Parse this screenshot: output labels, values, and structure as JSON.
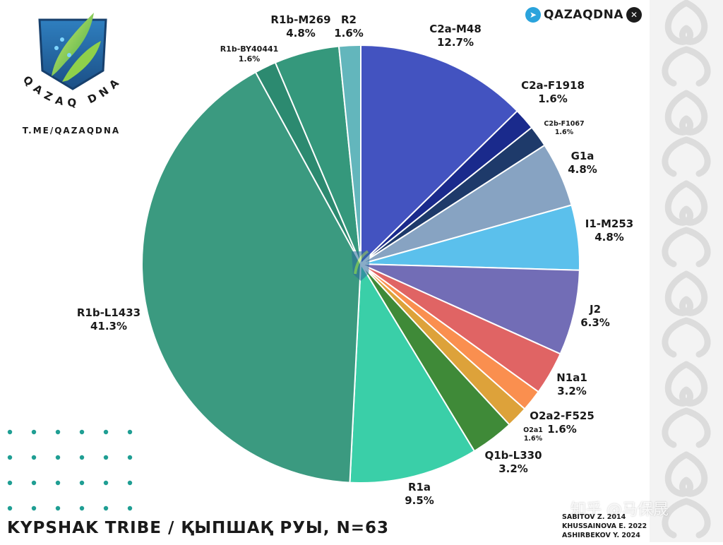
{
  "brand": {
    "logo_text": "QAZAQ DNA",
    "logo_url": "T.ME/QAZAQDNA",
    "channel_name": "QAZAQDNA",
    "icons": [
      "telegram-icon",
      "x-icon"
    ]
  },
  "chart_data": {
    "type": "pie",
    "title": "KYPSHAK TRIBE / ҚЫПШАҚ РУЫ, N=63",
    "start": "12 o'clock",
    "direction": "clockwise",
    "slices": [
      {
        "name": "C2a-M48",
        "value": 12.7,
        "label": "12.7%",
        "color": "#4353c0"
      },
      {
        "name": "C2a-F1918",
        "value": 1.6,
        "label": "1.6%",
        "color": "#1a2a8c"
      },
      {
        "name": "C2b-F1067",
        "value": 1.6,
        "label": "1.6%",
        "color": "#1e3a6a"
      },
      {
        "name": "G1a",
        "value": 4.8,
        "label": "4.8%",
        "color": "#87a3c2"
      },
      {
        "name": "I1-M253",
        "value": 4.8,
        "label": "4.8%",
        "color": "#5bc0ec"
      },
      {
        "name": "J2",
        "value": 6.3,
        "label": "6.3%",
        "color": "#726db6"
      },
      {
        "name": "N1a1",
        "value": 3.2,
        "label": "3.2%",
        "color": "#e06464"
      },
      {
        "name": "O2a2-F525",
        "value": 1.6,
        "label": "1.6%",
        "color": "#fa8f4f"
      },
      {
        "name": "O2a1",
        "value": 1.6,
        "label": "1.6%",
        "color": "#dda23a"
      },
      {
        "name": "Q1b-L330",
        "value": 3.2,
        "label": "3.2%",
        "color": "#3f8a38"
      },
      {
        "name": "R1a",
        "value": 9.5,
        "label": "9.5%",
        "color": "#3acfa8"
      },
      {
        "name": "R1b-L1433",
        "value": 41.3,
        "label": "41.3%",
        "color": "#3b9a80"
      },
      {
        "name": "R1b-BY40441",
        "value": 1.6,
        "label": "1.6%",
        "color": "#2c8a70"
      },
      {
        "name": "R1b-M269",
        "value": 4.8,
        "label": "4.8%",
        "color": "#35987c"
      },
      {
        "name": "R2",
        "value": 1.6,
        "label": "1.6%",
        "color": "#63b6bc"
      }
    ]
  },
  "sources": [
    "SABITOV Z. 2014",
    "KHUSSAINOVA E. 2022",
    "ASHIRBEKOV Y. 2024"
  ],
  "watermark": "知乎 @马保晟"
}
